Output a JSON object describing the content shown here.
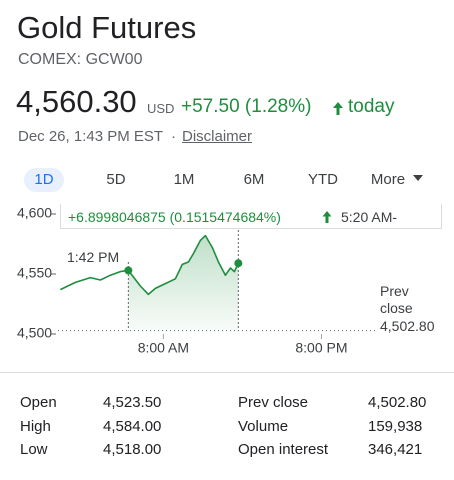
{
  "header": {
    "title": "Gold Futures",
    "ticker": "COMEX: GCW00",
    "price": "4,560.30",
    "currency": "USD",
    "change": "+57.50 (1.28%)",
    "period": "today",
    "timestamp": "Dec 26, 1:43 PM EST",
    "separator": "·",
    "disclaimer": "Disclaimer"
  },
  "tabs": [
    "1D",
    "5D",
    "1M",
    "6M",
    "YTD",
    "More"
  ],
  "chart_data": {
    "type": "line",
    "x": [
      0.18,
      1.32,
      2.46,
      3.22,
      3.98,
      4.73,
      5.34,
      6.25,
      6.86,
      7.39,
      8.15,
      8.91,
      9.44,
      9.9,
      10.28,
      10.81,
      11.19,
      11.72,
      12.18,
      12.71,
      13.09,
      13.39,
      13.69
    ],
    "values": [
      4537,
      4543,
      4547,
      4545,
      4549,
      4552,
      4553,
      4540,
      4533,
      4538,
      4542,
      4546,
      4558,
      4560,
      4567,
      4578,
      4582,
      4572,
      4560,
      4549,
      4555,
      4552,
      4559
    ],
    "color": "#1e8e3e",
    "xlim": [
      0,
      29
    ],
    "xticks": [
      {
        "value": 8,
        "label": "8:00 AM"
      },
      {
        "value": 20,
        "label": "8:00 PM"
      }
    ],
    "ylim": [
      4500,
      4600
    ],
    "yticks": [
      {
        "value": 4500,
        "label": "4,500"
      },
      {
        "value": 4550,
        "label": "4,550"
      },
      {
        "value": 4600,
        "label": "4,600"
      }
    ],
    "prev_close": 4502.8,
    "prev_close_label": "Prev close",
    "prev_close_value_label": "4,502.80",
    "hover_x": 5.34,
    "hover_time": "1:42 PM",
    "tooltip": {
      "change": "+6.8998046875 (0.1515474684%)",
      "time": "5:20 AM-"
    }
  },
  "stats": {
    "rows": [
      [
        "Open",
        "4,523.50",
        "Prev close",
        "4,502.80"
      ],
      [
        "High",
        "4,584.00",
        "Volume",
        "159,938"
      ],
      [
        "Low",
        "4,518.00",
        "Open interest",
        "346,421"
      ]
    ]
  }
}
